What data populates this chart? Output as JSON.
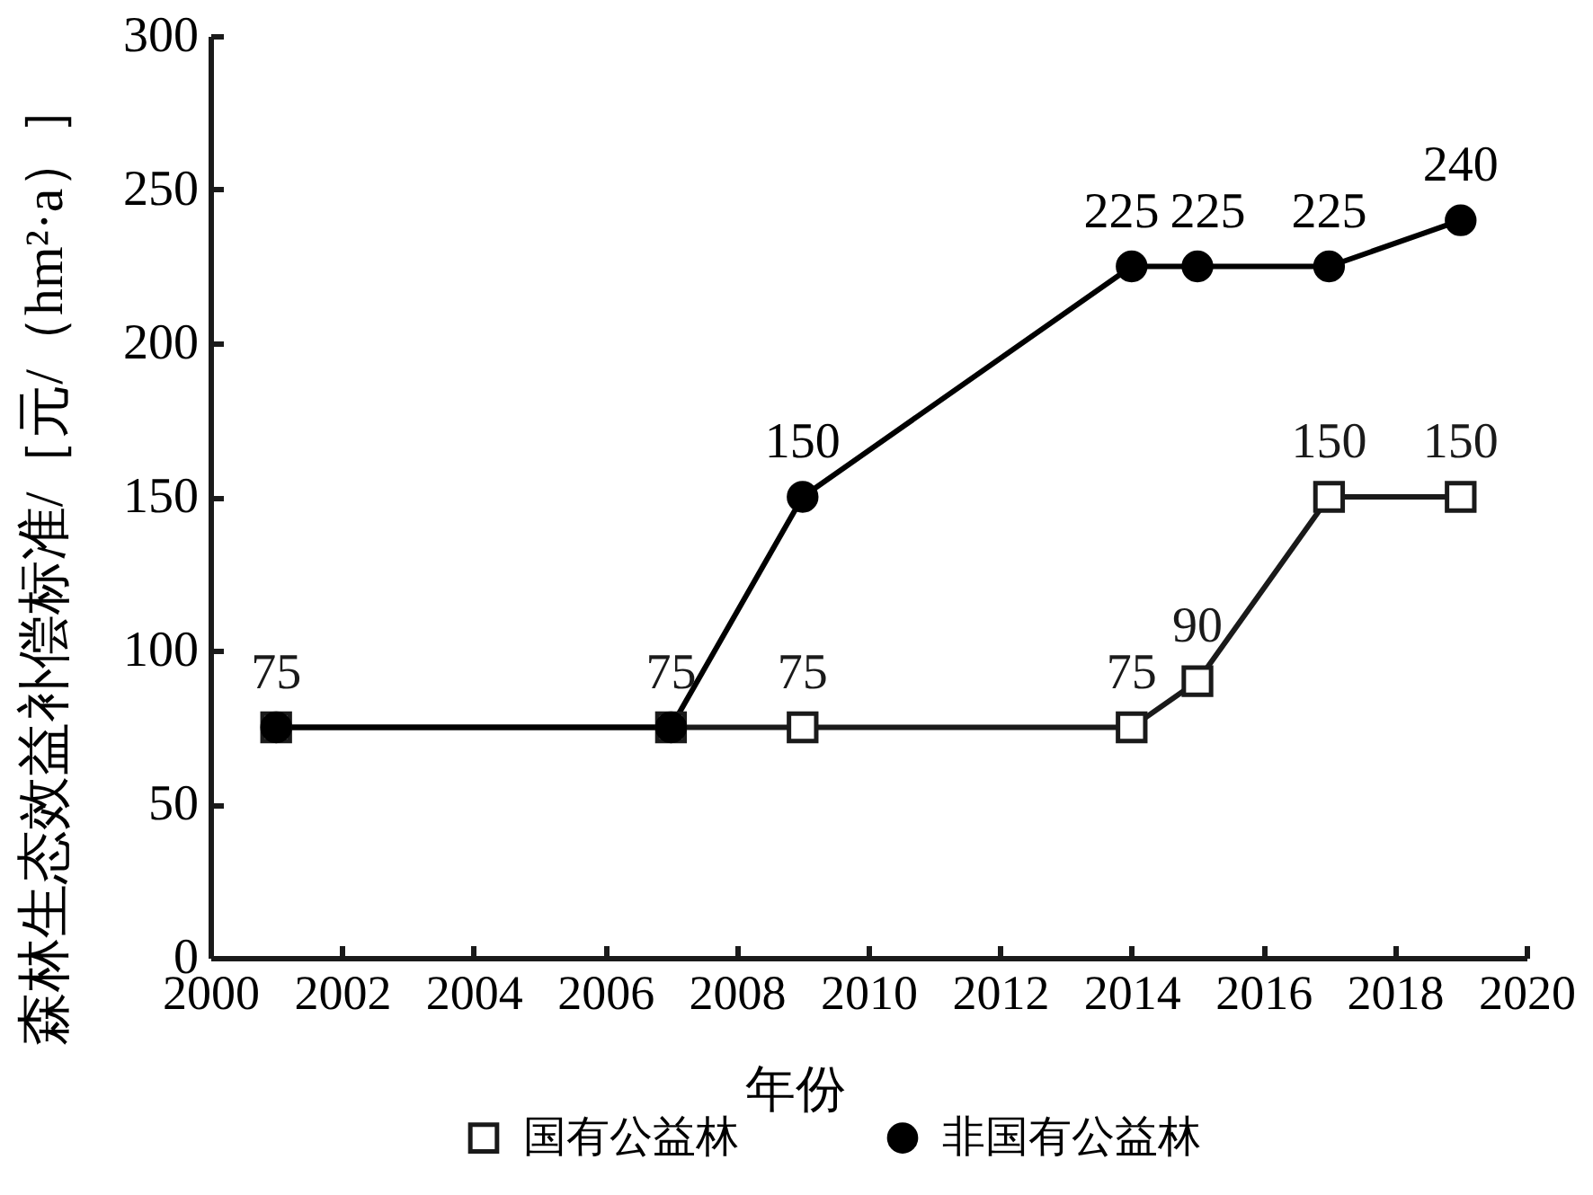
{
  "chart_data": {
    "type": "line",
    "xlabel": "年份",
    "ylabel": "森林生态效益补偿标准/［元/（hm²·a）］",
    "x": [
      2001,
      2007,
      2009,
      2014,
      2015,
      2017,
      2019
    ],
    "xlim": [
      2000,
      2020
    ],
    "xticks": [
      2000,
      2002,
      2004,
      2006,
      2008,
      2010,
      2012,
      2014,
      2016,
      2018,
      2020
    ],
    "ylim": [
      0,
      300
    ],
    "yticks": [
      0,
      50,
      100,
      150,
      200,
      250,
      300
    ],
    "grid": false,
    "legend": "bottom",
    "line_style": "solid",
    "series": [
      {
        "name": "国有公益林",
        "color": "#1a1a1a",
        "marker": "square",
        "values": [
          75,
          75,
          75,
          75,
          90,
          150,
          150
        ],
        "value_labels": [
          "75",
          "75",
          "75",
          "75",
          "90",
          "150",
          "150"
        ]
      },
      {
        "name": "非国有公益林",
        "color": "#000000",
        "marker": "circle",
        "values": [
          75,
          75,
          150,
          225,
          225,
          225,
          240
        ],
        "value_labels": [
          null,
          null,
          "150",
          "225",
          "225",
          "225",
          "240"
        ]
      }
    ]
  }
}
